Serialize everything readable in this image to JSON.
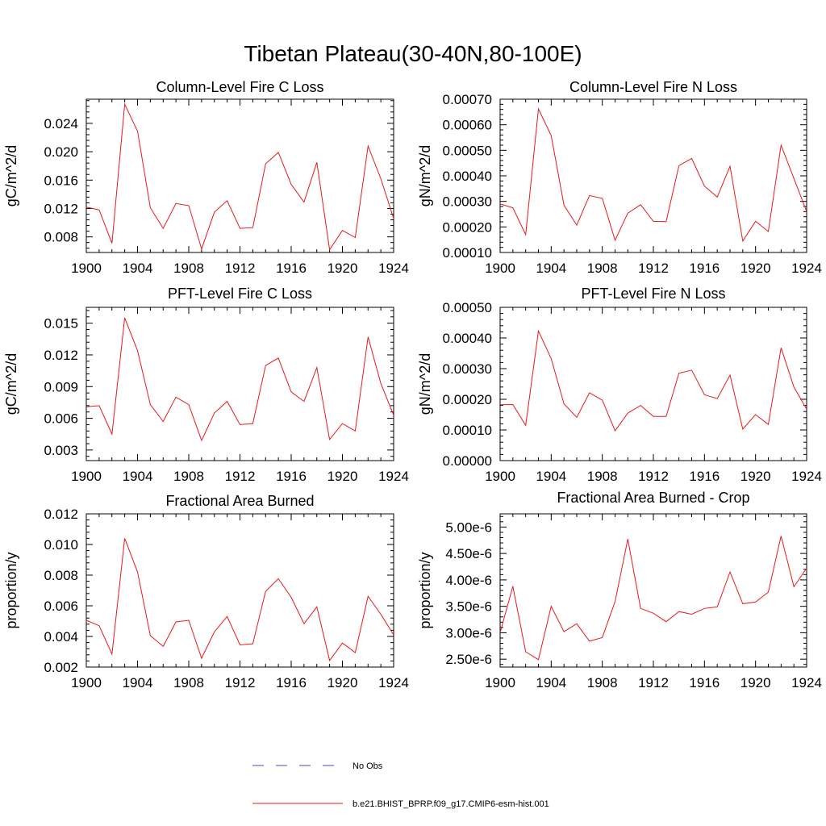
{
  "figure": {
    "title": "Tibetan Plateau(30-40N,80-100E)"
  },
  "legend": {
    "entries": [
      {
        "label": "No Obs",
        "color": "#4a4ac8",
        "style": "dashed"
      },
      {
        "label": "b.e21.BHIST_BPRP.f09_g17.CMIP6-esm-hist.001",
        "color": "#e8191b",
        "style": "solid"
      }
    ]
  },
  "chart_data": [
    {
      "type": "line",
      "title": "Column-Level Fire C Loss",
      "ylabel": "gC/m^2/d",
      "xlim": [
        1900,
        1924
      ],
      "ylim": [
        0.0058,
        0.0274
      ],
      "xticks": [
        1900,
        1904,
        1908,
        1912,
        1916,
        1920,
        1924
      ],
      "xtick_labels": [
        "1900",
        "1904",
        "1908",
        "1912",
        "1916",
        "1920",
        "1924"
      ],
      "yticks": [
        0.008,
        0.012,
        0.016,
        0.02,
        0.024
      ],
      "ytick_labels": [
        "0.008",
        "0.012",
        "0.016",
        "0.020",
        "0.024"
      ],
      "x": [
        1900,
        1901,
        1902,
        1903,
        1904,
        1905,
        1906,
        1907,
        1908,
        1909,
        1910,
        1911,
        1912,
        1913,
        1914,
        1915,
        1916,
        1917,
        1918,
        1919,
        1920,
        1921,
        1922,
        1923,
        1924
      ],
      "series": [
        {
          "values": [
            0.0122,
            0.0118,
            0.0071,
            0.0267,
            0.0229,
            0.0121,
            0.0092,
            0.0127,
            0.0124,
            0.0063,
            0.0115,
            0.0131,
            0.0092,
            0.0093,
            0.0183,
            0.0199,
            0.0154,
            0.0129,
            0.0185,
            0.0062,
            0.0089,
            0.0079,
            0.0208,
            0.0162,
            0.0106
          ]
        }
      ]
    },
    {
      "type": "line",
      "title": "Column-Level Fire N Loss",
      "ylabel": "gN/m^2/d",
      "xlim": [
        1900,
        1924
      ],
      "ylim": [
        0.0001,
        0.0007
      ],
      "xticks": [
        1900,
        1904,
        1908,
        1912,
        1916,
        1920,
        1924
      ],
      "xtick_labels": [
        "1900",
        "1904",
        "1908",
        "1912",
        "1916",
        "1920",
        "1924"
      ],
      "yticks": [
        0.0001,
        0.0002,
        0.0003,
        0.0004,
        0.0005,
        0.0006,
        0.0007
      ],
      "ytick_labels": [
        "0.00010",
        "0.00020",
        "0.00030",
        "0.00040",
        "0.00050",
        "0.00060",
        "0.00070"
      ],
      "x": [
        1900,
        1901,
        1902,
        1903,
        1904,
        1905,
        1906,
        1907,
        1908,
        1909,
        1910,
        1911,
        1912,
        1913,
        1914,
        1915,
        1916,
        1917,
        1918,
        1919,
        1920,
        1921,
        1922,
        1923,
        1924
      ],
      "series": [
        {
          "values": [
            0.00029,
            0.000275,
            0.00017,
            0.000662,
            0.000558,
            0.000285,
            0.000207,
            0.000323,
            0.000312,
            0.000148,
            0.000254,
            0.000287,
            0.000222,
            0.000221,
            0.00044,
            0.000468,
            0.00036,
            0.000317,
            0.000438,
            0.000145,
            0.000222,
            0.000182,
            0.00052,
            0.00039,
            0.00026
          ]
        }
      ]
    },
    {
      "type": "line",
      "title": "PFT-Level Fire C Loss",
      "ylabel": "gC/m^2/d",
      "xlim": [
        1900,
        1924
      ],
      "ylim": [
        0.002,
        0.0165
      ],
      "xticks": [
        1900,
        1904,
        1908,
        1912,
        1916,
        1920,
        1924
      ],
      "xtick_labels": [
        "1900",
        "1904",
        "1908",
        "1912",
        "1916",
        "1920",
        "1924"
      ],
      "yticks": [
        0.003,
        0.006,
        0.009,
        0.012,
        0.015
      ],
      "ytick_labels": [
        "0.003",
        "0.006",
        "0.009",
        "0.012",
        "0.015"
      ],
      "x": [
        1900,
        1901,
        1902,
        1903,
        1904,
        1905,
        1906,
        1907,
        1908,
        1909,
        1910,
        1911,
        1912,
        1913,
        1914,
        1915,
        1916,
        1917,
        1918,
        1919,
        1920,
        1921,
        1922,
        1923,
        1924
      ],
      "series": [
        {
          "values": [
            0.0071,
            0.0072,
            0.0045,
            0.0155,
            0.0124,
            0.0073,
            0.0057,
            0.008,
            0.0073,
            0.0039,
            0.0065,
            0.0076,
            0.0054,
            0.0055,
            0.011,
            0.0117,
            0.0085,
            0.0076,
            0.0108,
            0.004,
            0.0055,
            0.0048,
            0.0137,
            0.0093,
            0.0063
          ]
        }
      ]
    },
    {
      "type": "line",
      "title": "PFT-Level Fire N Loss",
      "ylabel": "gN/m^2/d",
      "xlim": [
        1900,
        1924
      ],
      "ylim": [
        0.0,
        0.0005
      ],
      "xticks": [
        1900,
        1904,
        1908,
        1912,
        1916,
        1920,
        1924
      ],
      "xtick_labels": [
        "1900",
        "1904",
        "1908",
        "1912",
        "1916",
        "1920",
        "1924"
      ],
      "yticks": [
        0.0,
        0.0001,
        0.0002,
        0.0003,
        0.0004,
        0.0005
      ],
      "ytick_labels": [
        "0.00000",
        "0.00010",
        "0.00020",
        "0.00030",
        "0.00040",
        "0.00050"
      ],
      "x": [
        1900,
        1901,
        1902,
        1903,
        1904,
        1905,
        1906,
        1907,
        1908,
        1909,
        1910,
        1911,
        1912,
        1913,
        1914,
        1915,
        1916,
        1917,
        1918,
        1919,
        1920,
        1921,
        1922,
        1923,
        1924
      ],
      "series": [
        {
          "values": [
            0.000182,
            0.000183,
            0.000115,
            0.000423,
            0.000333,
            0.000185,
            0.000141,
            0.000221,
            0.000197,
            9.7e-05,
            0.000155,
            0.00018,
            0.000144,
            0.000144,
            0.000285,
            0.000295,
            0.000215,
            0.000202,
            0.000279,
            0.000103,
            0.00015,
            0.000118,
            0.000368,
            0.00024,
            0.000168
          ]
        }
      ]
    },
    {
      "type": "line",
      "title": "Fractional Area Burned",
      "ylabel": "proportion/y",
      "xlim": [
        1900,
        1924
      ],
      "ylim": [
        0.002,
        0.012
      ],
      "xticks": [
        1900,
        1904,
        1908,
        1912,
        1916,
        1920,
        1924
      ],
      "xtick_labels": [
        "1900",
        "1904",
        "1908",
        "1912",
        "1916",
        "1920",
        "1924"
      ],
      "yticks": [
        0.002,
        0.004,
        0.006,
        0.008,
        0.01,
        0.012
      ],
      "ytick_labels": [
        "0.002",
        "0.004",
        "0.006",
        "0.008",
        "0.010",
        "0.012"
      ],
      "x": [
        1900,
        1901,
        1902,
        1903,
        1904,
        1905,
        1906,
        1907,
        1908,
        1909,
        1910,
        1911,
        1912,
        1913,
        1914,
        1915,
        1916,
        1917,
        1918,
        1919,
        1920,
        1921,
        1922,
        1923,
        1924
      ],
      "series": [
        {
          "values": [
            0.00505,
            0.0047,
            0.00285,
            0.0104,
            0.0082,
            0.00405,
            0.00335,
            0.00495,
            0.00505,
            0.00258,
            0.0043,
            0.0053,
            0.00345,
            0.00352,
            0.00695,
            0.00777,
            0.00655,
            0.00483,
            0.00593,
            0.00243,
            0.00357,
            0.00295,
            0.00662,
            0.00545,
            0.0041
          ]
        }
      ]
    },
    {
      "type": "line",
      "title": "Fractional Area Burned - Crop",
      "ylabel": "proportion/y",
      "xlim": [
        1900,
        1924
      ],
      "ylim": [
        2.35e-06,
        5.25e-06
      ],
      "xticks": [
        1900,
        1904,
        1908,
        1912,
        1916,
        1920,
        1924
      ],
      "xtick_labels": [
        "1900",
        "1904",
        "1908",
        "1912",
        "1916",
        "1920",
        "1924"
      ],
      "yticks": [
        2.5e-06,
        3e-06,
        3.5e-06,
        4e-06,
        4.5e-06,
        5e-06
      ],
      "ytick_labels": [
        "2.50e-6",
        "3.00e-6",
        "3.50e-6",
        "4.00e-6",
        "4.50e-6",
        "5.00e-6"
      ],
      "x": [
        1900,
        1901,
        1902,
        1903,
        1904,
        1905,
        1906,
        1907,
        1908,
        1909,
        1910,
        1911,
        1912,
        1913,
        1914,
        1915,
        1916,
        1917,
        1918,
        1919,
        1920,
        1921,
        1922,
        1923,
        1924
      ],
      "series": [
        {
          "values": [
            3e-06,
            3.88e-06,
            2.64e-06,
            2.49e-06,
            3.5e-06,
            3.02e-06,
            3.17e-06,
            2.84e-06,
            2.91e-06,
            3.59e-06,
            4.77e-06,
            3.46e-06,
            3.37e-06,
            3.21e-06,
            3.4e-06,
            3.35e-06,
            3.46e-06,
            3.49e-06,
            4.15e-06,
            3.55e-06,
            3.58e-06,
            3.77e-06,
            4.83e-06,
            3.87e-06,
            4.22e-06
          ]
        }
      ]
    }
  ]
}
